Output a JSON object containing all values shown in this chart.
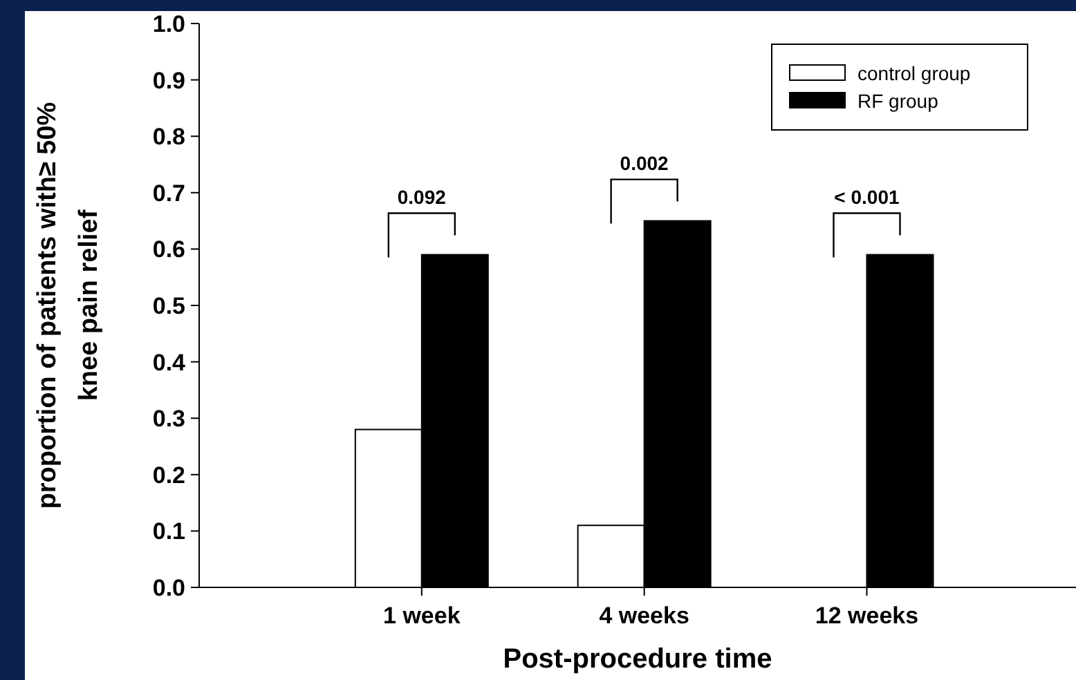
{
  "chart_data": {
    "type": "bar",
    "xlabel": "Post-procedure time",
    "ylabel": "proportion of patients with≥ 50%\nknee pain relief",
    "categories": [
      "1 week",
      "4 weeks",
      "12 weeks"
    ],
    "series": [
      {
        "name": "control group",
        "color": "#ffffff",
        "values": [
          0.28,
          0.11,
          0
        ]
      },
      {
        "name": "RF group",
        "color": "#000000",
        "values": [
          0.59,
          0.65,
          0.59
        ]
      }
    ],
    "ylim": [
      0,
      1
    ],
    "yticks": [
      {
        "value": 0,
        "label": "0.0"
      },
      0.1,
      0.2,
      0.3,
      0.4,
      0.5,
      0.6,
      0.7,
      0.8,
      0.9,
      {
        "value": 1,
        "label": "1.0"
      }
    ],
    "grid": false,
    "legend": "top right",
    "annotations": [
      "0.092",
      "0.002",
      "< 0.001"
    ]
  }
}
